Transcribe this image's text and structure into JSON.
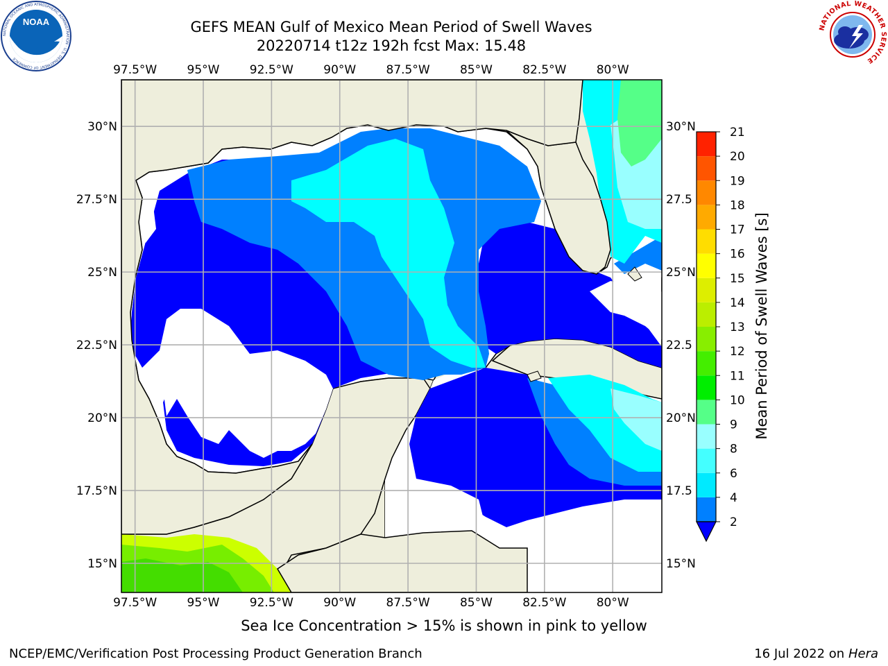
{
  "header": {
    "title_line1": "GEFS MEAN Gulf of Mexico Mean Period of Swell Waves",
    "title_line2": "20220714 t12z 192h fcst   Max: 15.48"
  },
  "logos": {
    "left": "NOAA",
    "left_ring": "NATIONAL OCEANIC AND ATMOSPHERIC ADMINISTRATION · U.S. DEPARTMENT OF COMMERCE",
    "right_ring": "NATIONAL WEATHER SERVICE"
  },
  "map": {
    "lon_labels": [
      "97.5°W",
      "95°W",
      "92.5°W",
      "90°W",
      "87.5°W",
      "85°W",
      "82.5°W",
      "80°W"
    ],
    "lon_values": [
      -97.5,
      -95,
      -92.5,
      -90,
      -87.5,
      -85,
      -82.5,
      -80
    ],
    "lat_labels_left": [
      "30°N",
      "27.5°N",
      "25°N",
      "22.5°N",
      "20°N",
      "17.5°N",
      "15°N"
    ],
    "lat_labels_right": [
      "30°N",
      "27.5",
      "25°N",
      "22.5",
      "20°N",
      "17.5",
      "15°N"
    ],
    "lat_values": [
      30,
      27.5,
      25,
      22.5,
      20,
      17.5,
      15
    ],
    "extent": {
      "lon_min": -98.0,
      "lon_max": -78.2,
      "lat_min": 14.0,
      "lat_max": 31.6
    },
    "colors": {
      "land": "#eeeedc",
      "ocean_low": "#ffffff",
      "ocean_2": "#0080ff",
      "ocean_0": "#0000ff",
      "ocean_4": "#00ffff",
      "grid": "#b0b0b0"
    }
  },
  "colorbar": {
    "label": "Mean Period of Swell Waves [s]",
    "tick_labels": [
      "2",
      "4",
      "6",
      "8",
      "9",
      "10",
      "11",
      "12",
      "13",
      "14",
      "15",
      "16",
      "17",
      "18",
      "19",
      "20",
      "21"
    ],
    "colors": [
      "#0080ff",
      "#00eaff",
      "#44ffff",
      "#99ffff",
      "#55ff88",
      "#00ee00",
      "#44ee00",
      "#88ee00",
      "#bbee00",
      "#ddee00",
      "#ffff00",
      "#ffdd00",
      "#ffaa00",
      "#ff8800",
      "#ff5500",
      "#ff2200",
      "#ff0000"
    ],
    "extend_color": "#0000ff"
  },
  "footer": {
    "note": "Sea Ice Concentration > 15% is shown in pink to yellow",
    "credit_left": "NCEP/EMC/Verification Post Processing Product Generation Branch",
    "credit_date": "16 Jul 2022 on",
    "credit_system": "Hera"
  }
}
